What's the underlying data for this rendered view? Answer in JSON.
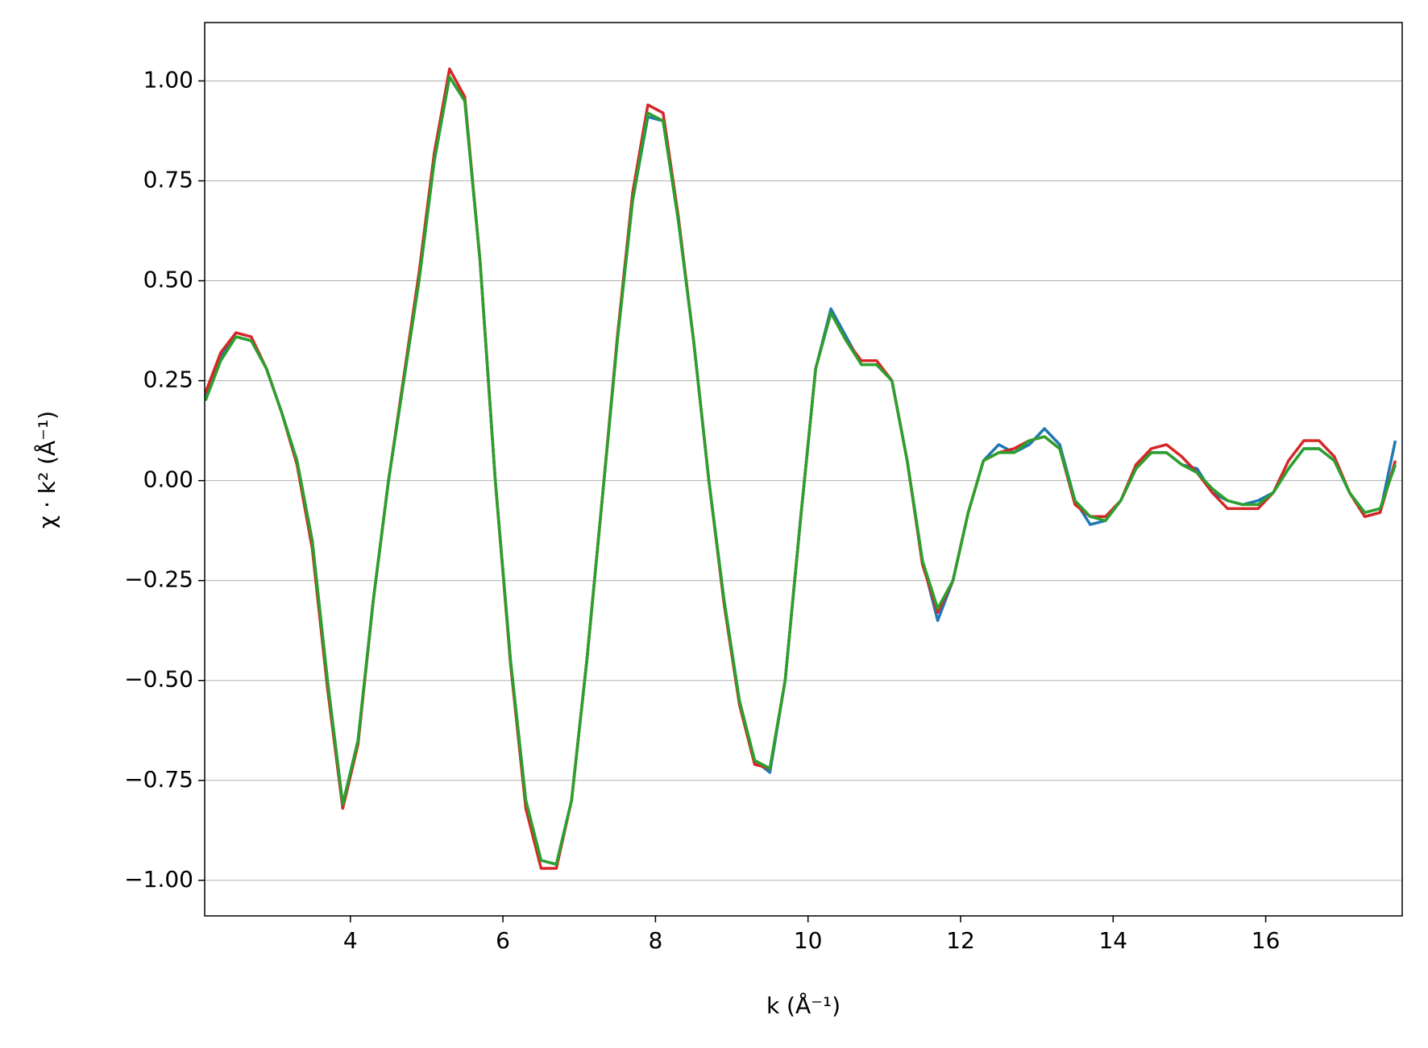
{
  "chart_data": {
    "type": "line",
    "xlabel": "k (Å⁻¹)",
    "ylabel": "χ · k² (Å⁻¹)",
    "x": [
      2.1,
      2.3,
      2.5,
      2.7,
      2.9,
      3.1,
      3.3,
      3.5,
      3.7,
      3.9,
      4.1,
      4.3,
      4.5,
      4.7,
      4.9,
      5.1,
      5.3,
      5.5,
      5.7,
      5.9,
      6.1,
      6.3,
      6.5,
      6.7,
      6.9,
      7.1,
      7.3,
      7.5,
      7.7,
      7.9,
      8.1,
      8.3,
      8.5,
      8.7,
      8.9,
      9.1,
      9.3,
      9.5,
      9.7,
      9.9,
      10.1,
      10.3,
      10.5,
      10.7,
      10.9,
      11.1,
      11.3,
      11.5,
      11.7,
      11.9,
      12.1,
      12.3,
      12.5,
      12.7,
      12.9,
      13.1,
      13.3,
      13.5,
      13.7,
      13.9,
      14.1,
      14.3,
      14.5,
      14.7,
      14.9,
      15.1,
      15.3,
      15.5,
      15.7,
      15.9,
      16.1,
      16.3,
      16.5,
      16.7,
      16.9,
      17.1,
      17.3,
      17.5,
      17.7
    ],
    "series": [
      {
        "color": "#1f77b4",
        "values": [
          0.21,
          0.31,
          0.36,
          0.35,
          0.28,
          0.17,
          0.05,
          -0.15,
          -0.5,
          -0.81,
          -0.65,
          -0.3,
          0.0,
          0.25,
          0.5,
          0.8,
          1.01,
          0.95,
          0.55,
          0.0,
          -0.45,
          -0.8,
          -0.95,
          -0.96,
          -0.8,
          -0.45,
          -0.05,
          0.35,
          0.7,
          0.91,
          0.9,
          0.65,
          0.35,
          0.0,
          -0.3,
          -0.55,
          -0.7,
          -0.73,
          -0.5,
          -0.1,
          0.28,
          0.43,
          0.36,
          0.29,
          0.29,
          0.25,
          0.05,
          -0.2,
          -0.35,
          -0.25,
          -0.08,
          0.05,
          0.09,
          0.07,
          0.09,
          0.13,
          0.09,
          -0.05,
          -0.11,
          -0.1,
          -0.05,
          0.03,
          0.07,
          0.07,
          0.04,
          0.03,
          -0.03,
          -0.05,
          -0.06,
          -0.05,
          -0.03,
          0.03,
          0.08,
          0.08,
          0.05,
          -0.03,
          -0.09,
          -0.08,
          0.1
        ]
      },
      {
        "color": "#d62728",
        "values": [
          0.22,
          0.32,
          0.37,
          0.36,
          0.28,
          0.17,
          0.04,
          -0.17,
          -0.52,
          -0.82,
          -0.66,
          -0.3,
          0.0,
          0.26,
          0.52,
          0.82,
          1.03,
          0.96,
          0.55,
          0.0,
          -0.46,
          -0.82,
          -0.97,
          -0.97,
          -0.8,
          -0.45,
          -0.05,
          0.36,
          0.72,
          0.94,
          0.92,
          0.66,
          0.35,
          0.0,
          -0.31,
          -0.56,
          -0.71,
          -0.72,
          -0.5,
          -0.1,
          0.28,
          0.42,
          0.35,
          0.3,
          0.3,
          0.25,
          0.05,
          -0.21,
          -0.33,
          -0.25,
          -0.08,
          0.05,
          0.07,
          0.08,
          0.1,
          0.11,
          0.08,
          -0.06,
          -0.09,
          -0.09,
          -0.05,
          0.04,
          0.08,
          0.09,
          0.06,
          0.02,
          -0.03,
          -0.07,
          -0.07,
          -0.07,
          -0.03,
          0.05,
          0.1,
          0.1,
          0.06,
          -0.03,
          -0.09,
          -0.08,
          0.05
        ]
      },
      {
        "color": "#2ca02c",
        "values": [
          0.2,
          0.3,
          0.36,
          0.35,
          0.28,
          0.17,
          0.05,
          -0.15,
          -0.5,
          -0.81,
          -0.65,
          -0.3,
          0.0,
          0.25,
          0.5,
          0.8,
          1.01,
          0.95,
          0.55,
          0.0,
          -0.45,
          -0.8,
          -0.95,
          -0.96,
          -0.8,
          -0.45,
          -0.05,
          0.35,
          0.7,
          0.92,
          0.9,
          0.65,
          0.35,
          0.0,
          -0.3,
          -0.55,
          -0.7,
          -0.72,
          -0.5,
          -0.1,
          0.28,
          0.42,
          0.35,
          0.29,
          0.29,
          0.25,
          0.05,
          -0.2,
          -0.32,
          -0.25,
          -0.08,
          0.05,
          0.07,
          0.07,
          0.1,
          0.11,
          0.08,
          -0.05,
          -0.09,
          -0.1,
          -0.05,
          0.03,
          0.07,
          0.07,
          0.04,
          0.02,
          -0.02,
          -0.05,
          -0.06,
          -0.06,
          -0.03,
          0.03,
          0.08,
          0.08,
          0.05,
          -0.03,
          -0.08,
          -0.07,
          0.04
        ]
      }
    ],
    "xlim": [
      2.09,
      17.79
    ],
    "ylim": [
      -1.089,
      1.146
    ],
    "xticks": [
      4,
      6,
      8,
      10,
      12,
      14,
      16
    ],
    "yticks": [
      {
        "value": -1,
        "label": "−1.00"
      },
      {
        "value": -0.75,
        "label": "−0.75"
      },
      {
        "value": -0.5,
        "label": "−0.50"
      },
      {
        "value": -0.25,
        "label": "−0.25"
      },
      {
        "value": 0,
        "label": "0.00"
      },
      {
        "value": 0.25,
        "label": "0.25"
      },
      {
        "value": 0.5,
        "label": "0.50"
      },
      {
        "value": 0.75,
        "label": "0.75"
      },
      {
        "value": 1,
        "label": "1.00"
      }
    ],
    "grid": true
  }
}
